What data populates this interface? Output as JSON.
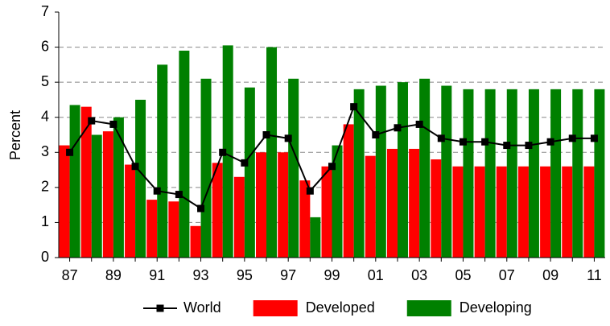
{
  "chart_data": {
    "type": "bar",
    "y_label": "Percent",
    "categories": [
      "87",
      null,
      "89",
      null,
      "91",
      null,
      "93",
      null,
      "95",
      null,
      "97",
      null,
      "99",
      null,
      "01",
      null,
      "03",
      null,
      "05",
      null,
      "07",
      null,
      "09",
      null,
      "11"
    ],
    "series": [
      {
        "name": "World",
        "type": "line",
        "color": "#000000",
        "values": [
          3.0,
          3.9,
          3.8,
          2.6,
          1.9,
          1.8,
          1.4,
          3.0,
          2.7,
          3.5,
          3.4,
          1.9,
          2.6,
          4.3,
          3.5,
          3.7,
          3.8,
          3.4,
          3.3,
          3.3,
          3.2,
          3.2,
          3.3,
          3.4,
          3.4
        ]
      },
      {
        "name": "Developed",
        "type": "bar",
        "color": "#ff0000",
        "values": [
          3.2,
          4.3,
          3.6,
          2.65,
          1.65,
          1.6,
          0.9,
          2.7,
          2.3,
          3.0,
          3.0,
          2.2,
          2.6,
          3.8,
          2.9,
          3.1,
          3.1,
          2.8,
          2.6,
          2.6,
          2.6,
          2.6,
          2.6,
          2.6,
          2.6
        ]
      },
      {
        "name": "Developing",
        "type": "bar",
        "color": "#008000",
        "values": [
          4.35,
          3.5,
          4.0,
          4.5,
          5.5,
          5.9,
          5.1,
          6.05,
          4.85,
          6.0,
          5.1,
          1.15,
          3.2,
          4.8,
          4.9,
          5.0,
          5.1,
          4.9,
          4.8,
          4.8,
          4.8,
          4.8,
          4.8,
          4.8,
          4.8
        ]
      }
    ],
    "ylim": [
      0,
      7
    ],
    "yticks": [
      0,
      1,
      2,
      3,
      4,
      5,
      6,
      7
    ],
    "grid": true
  }
}
